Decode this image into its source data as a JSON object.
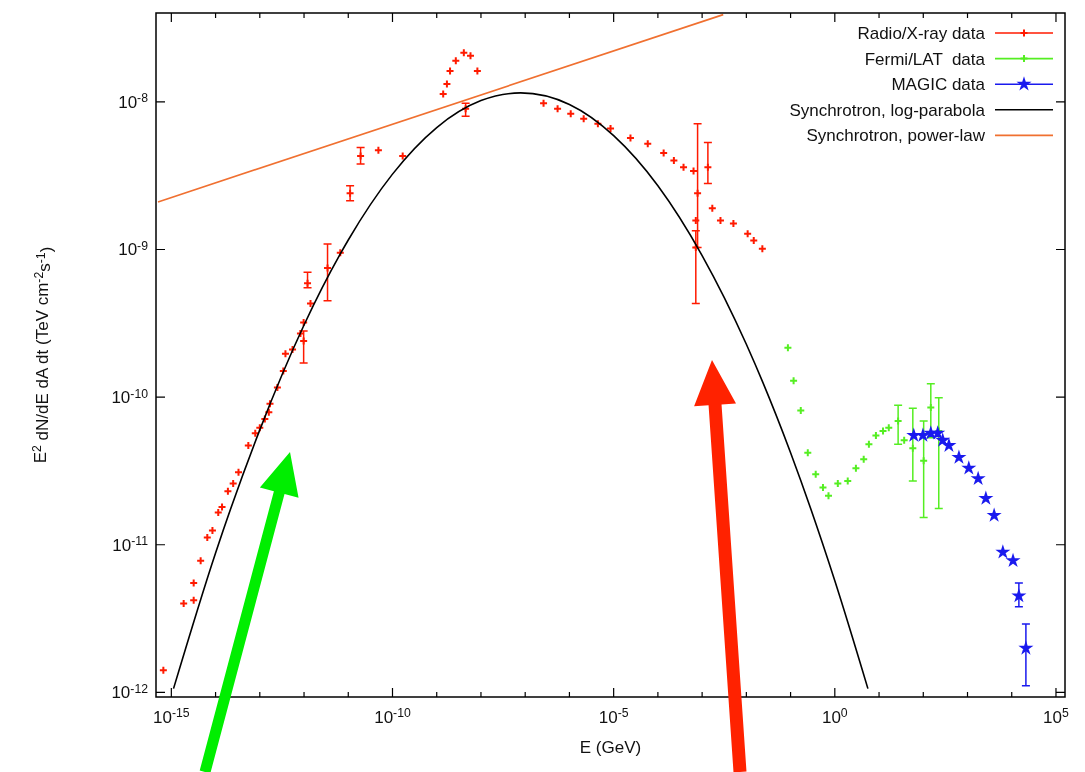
{
  "chart_data": {
    "type": "scatter",
    "xlabel": "E (GeV)",
    "ylabel": "E$^{2}$ dN/dE dA dt (TeV cm$^{-2}$s$^{-1}$)",
    "log": "xy",
    "legend": "top right",
    "xlim": [
      4.5e-16,
      160000.0
    ],
    "ylim": [
      9.3e-13,
      4e-08
    ],
    "xticks": [
      {
        "value": 1e-15,
        "label": "10$^{-15}$"
      },
      {
        "value": 1e-14,
        "label": null
      },
      {
        "value": 1e-13,
        "label": null
      },
      {
        "value": 1e-12,
        "label": null
      },
      {
        "value": 1e-11,
        "label": null
      },
      {
        "value": 1e-10,
        "label": "10$^{-10}$"
      },
      {
        "value": 1e-09,
        "label": null
      },
      {
        "value": 1e-08,
        "label": null
      },
      {
        "value": 1e-07,
        "label": null
      },
      {
        "value": 1e-06,
        "label": null
      },
      {
        "value": 1e-05,
        "label": "10$^{-5}$"
      },
      {
        "value": 0.0001,
        "label": null
      },
      {
        "value": 0.001,
        "label": null
      },
      {
        "value": 0.01,
        "label": null
      },
      {
        "value": 0.1,
        "label": null
      },
      {
        "value": 1,
        "label": "10$^{0}$"
      },
      {
        "value": 10,
        "label": null
      },
      {
        "value": 100,
        "label": null
      },
      {
        "value": 1000,
        "label": null
      },
      {
        "value": 10000,
        "label": null
      },
      {
        "value": 100000,
        "label": "10$^{5}$"
      }
    ],
    "yticks": [
      {
        "value": 1e-12,
        "label": "10$^{-12}$"
      },
      {
        "value": 1e-11,
        "label": "10$^{-11}$"
      },
      {
        "value": 1e-10,
        "label": "10$^{-10}$"
      },
      {
        "value": 1e-09,
        "label": "10$^{-9}$"
      },
      {
        "value": 1e-08,
        "label": "10$^{-8}$"
      }
    ],
    "series": [
      {
        "name": "Radio/X-ray data",
        "color": "#ff1a00",
        "marker": "cross",
        "x": [
          6.6e-16,
          1.9e-15,
          3.2e-15,
          3.2e-15,
          4.6e-15,
          6.5e-15,
          8.5e-15,
          1.15e-14,
          1.4e-14,
          1.9e-14,
          2.5e-14,
          3.3e-14,
          5.5e-14,
          7.9e-14,
          1e-13,
          1.3e-13,
          1.6e-13,
          1.7e-13,
          2.5e-13,
          3.4e-13,
          3.8e-13,
          5.5e-13,
          9.8e-13,
          8.3e-13,
          9.8e-13,
          1.4e-12,
          1.2e-12,
          3.4e-12,
          6.6e-12,
          1.1e-11,
          1.9e-11,
          4.8e-11,
          1.7e-10,
          1.4e-09,
          1.7e-09,
          2e-09,
          2.7e-09,
          4.1e-09,
          5.8e-09,
          8.3e-09,
          4.5e-09,
          2.6e-07,
          5.4e-07,
          1.07e-06,
          2.1e-06,
          4.4e-06,
          8.5e-06,
          2.4e-05,
          5.9e-05,
          0.000135,
          0.00023,
          0.00038,
          0.00064,
          0.00079,
          0.00072,
          0.00072,
          0.00135,
          0.0017,
          0.0026,
          0.0051,
          0.0107,
          0.0147,
          0.023
        ],
        "values": [
          1.41e-12,
          4e-12,
          4.2e-12,
          5.5e-12,
          7.8e-12,
          1.12e-11,
          1.25e-11,
          1.65e-11,
          1.8e-11,
          2.3e-11,
          2.6e-11,
          3.1e-11,
          4.7e-11,
          5.7e-11,
          6.2e-11,
          7.1e-11,
          7.9e-11,
          9e-11,
          1.16e-10,
          1.5e-10,
          1.97e-10,
          2.1e-10,
          2.4e-10,
          2.7e-10,
          3.2e-10,
          4.3e-10,
          5.9e-10,
          7.5e-10,
          9.5e-10,
          2.4e-09,
          4.3e-09,
          4.7e-09,
          4.3e-09,
          1.13e-08,
          1.32e-08,
          1.62e-08,
          1.9e-08,
          2.15e-08,
          2.05e-08,
          1.62e-08,
          9e-09,
          9.8e-09,
          9e-09,
          8.3e-09,
          7.7e-09,
          7.1e-09,
          6.6e-09,
          5.7e-09,
          5.2e-09,
          4.5e-09,
          4e-09,
          3.6e-09,
          3.4e-09,
          2.4e-09,
          1.57e-09,
          1.03e-09,
          3.6e-09,
          1.9e-09,
          1.57e-09,
          1.5e-09,
          1.28e-09,
          1.15e-09,
          1.01e-09
        ],
        "errors": [
          null,
          null,
          null,
          null,
          null,
          null,
          null,
          null,
          null,
          null,
          null,
          null,
          null,
          null,
          null,
          null,
          null,
          null,
          null,
          null,
          null,
          null,
          [
            1.7e-10,
            2.8e-10
          ],
          null,
          null,
          null,
          [
            5.5e-10,
            7e-10
          ],
          [
            4.5e-10,
            1.09e-09
          ],
          null,
          [
            2.14e-09,
            2.7e-09
          ],
          [
            3.8e-09,
            4.9e-09
          ],
          null,
          null,
          null,
          null,
          null,
          null,
          null,
          null,
          null,
          [
            8e-09,
            9.8e-09
          ],
          null,
          null,
          null,
          null,
          null,
          null,
          null,
          null,
          null,
          null,
          null,
          null,
          [
            1.03e-09,
            7.1e-09
          ],
          null,
          [
            4.3e-10,
            1.34e-09
          ],
          [
            2.8e-09,
            5.3e-09
          ],
          null,
          null,
          null,
          null,
          null,
          null
        ]
      },
      {
        "name": "Fermi/LAT  data",
        "color": "#55ee22",
        "marker": "cross",
        "x": [
          0.087,
          0.117,
          0.17,
          0.245,
          0.37,
          0.54,
          0.72,
          1.17,
          1.96,
          3.0,
          4.5,
          5.9,
          8.5,
          12.3,
          16.6,
          27,
          37,
          58,
          102,
          148,
          224
        ],
        "values": [
          2.16e-10,
          1.29e-10,
          8.1e-11,
          4.2e-11,
          3e-11,
          2.44e-11,
          2.15e-11,
          2.6e-11,
          2.7e-11,
          3.3e-11,
          3.8e-11,
          4.8e-11,
          5.5e-11,
          5.9e-11,
          6.2e-11,
          6.9e-11,
          5.1e-11,
          4.5e-11,
          3.7e-11,
          8.5e-11,
          5.9e-11
        ],
        "errors": [
          null,
          null,
          null,
          null,
          null,
          null,
          null,
          null,
          null,
          null,
          null,
          null,
          null,
          null,
          null,
          [
            4.8e-11,
            8.8e-11
          ],
          null,
          [
            2.7e-11,
            8.4e-11
          ],
          [
            1.53e-11,
            6.9e-11
          ],
          [
            5.3e-11,
            1.23e-10
          ],
          [
            1.76e-11,
            9.9e-11
          ]
        ]
      },
      {
        "name": "MAGIC data",
        "color": "#1a1aee",
        "marker": "star",
        "x": [
          61,
          98,
          148,
          212,
          275,
          380,
          640,
          1070,
          1740,
          2600,
          4000,
          6300,
          10700,
          14500,
          20900
        ],
        "values": [
          5.5e-11,
          5.5e-11,
          5.7e-11,
          5.7e-11,
          5.1e-11,
          4.7e-11,
          3.9e-11,
          3.3e-11,
          2.8e-11,
          2.06e-11,
          1.58e-11,
          8.9e-12,
          7.8e-12,
          4.5e-12,
          1.99e-12
        ],
        "errors": [
          null,
          null,
          null,
          null,
          null,
          null,
          null,
          null,
          null,
          null,
          null,
          null,
          null,
          [
            3.8e-12,
            5.5e-12
          ],
          [
            1.11e-12,
            2.9e-12
          ]
        ]
      },
      {
        "name": "Synchrotron, log-parabola",
        "type": "line",
        "color": "#000000",
        "marker": "none",
        "x": [
          1.12e-15,
          1e-14,
          1e-13,
          1e-12,
          1e-11,
          1e-10,
          1e-09,
          1e-08,
          7.9e-08,
          1e-06,
          1e-05,
          0.0001,
          0.001,
          0.01,
          0.1,
          1,
          5.6
        ],
        "values": [
          1.06e-12,
          8.8e-12,
          6e-11,
          3.08e-10,
          1.16e-09,
          3.24e-09,
          6.7e-09,
          1.02e-08,
          1.15e-08,
          9.6e-09,
          5.9e-09,
          2.7e-09,
          9.1e-10,
          2.28e-10,
          4.2e-11,
          5.7e-12,
          1.06e-12
        ]
      },
      {
        "name": "Synchrotron, power-law",
        "type": "line",
        "color": "#f07030",
        "marker": "none",
        "x": [
          5e-16,
          0.003
        ],
        "values": [
          2.1e-09,
          3.9e-08
        ]
      }
    ]
  }
}
